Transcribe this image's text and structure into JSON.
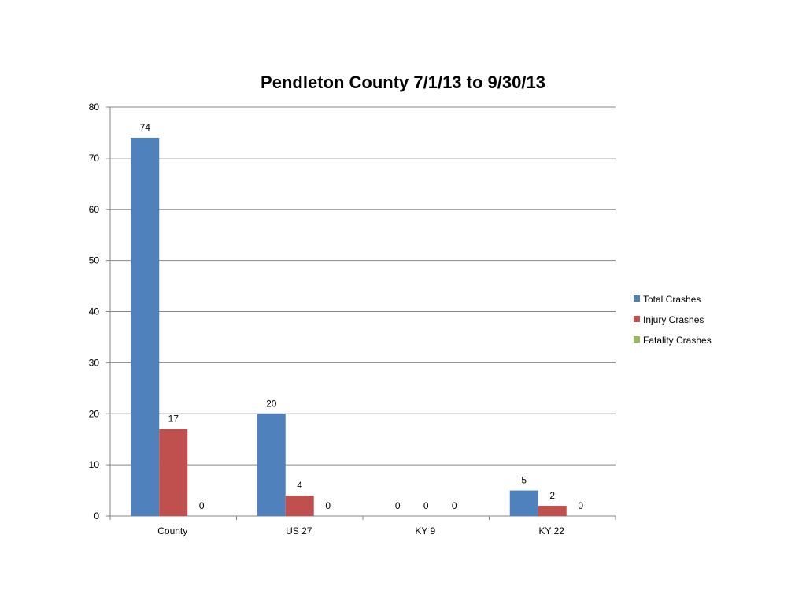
{
  "chart_data": {
    "type": "bar",
    "title": "Pendleton County 7/1/13 to 9/30/13",
    "xlabel": "",
    "ylabel": "",
    "ylim": [
      0,
      80
    ],
    "yticks": [
      0,
      10,
      20,
      30,
      40,
      50,
      60,
      70,
      80
    ],
    "grid": true,
    "legend_position": "right",
    "categories": [
      "County",
      "US 27",
      "KY 9",
      "KY 22"
    ],
    "series": [
      {
        "name": "Total Crashes",
        "color": "#4f81bd",
        "values": [
          74,
          20,
          0,
          5
        ]
      },
      {
        "name": "Injury Crashes",
        "color": "#c0504d",
        "values": [
          17,
          4,
          0,
          2
        ]
      },
      {
        "name": "Fatality Crashes",
        "color": "#9bbb59",
        "values": [
          0,
          0,
          0,
          0
        ]
      }
    ]
  }
}
